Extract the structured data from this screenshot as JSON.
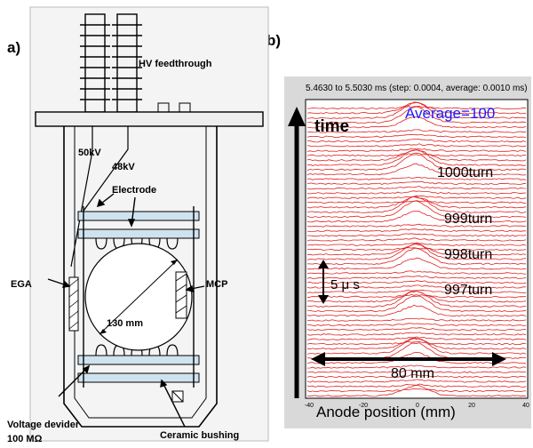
{
  "panel_a": {
    "label": "a)",
    "hv_feedthrough": "HV feedthrough",
    "v50": "50kV",
    "v48": "48kV",
    "electrode": "Electrode",
    "ega": "EGA",
    "mcp": "MCP",
    "diameter": "130 mm",
    "voltage_divider": "Voltage devider",
    "resistance": "100 MΩ",
    "ceramic_bushing": "Ceramic bushing"
  },
  "panel_b": {
    "label": "b)",
    "header": "5.4630 to  5.5030 ms (step:  0.0004, average:  0.0010 ms)",
    "average": "Average=100",
    "time_label": "time",
    "turns": [
      "1000turn",
      "999turn",
      "998turn",
      "997turn"
    ],
    "time_scale": "5 μ s",
    "width_label": "80 mm",
    "x_axis_label": "Anode position (mm)",
    "x_ticks": [
      "-40",
      "-20",
      "0",
      "20",
      "40"
    ],
    "colors": {
      "trace": "#e02020",
      "panel_bg": "#d9d9d9",
      "average": "#1a1aff"
    }
  }
}
